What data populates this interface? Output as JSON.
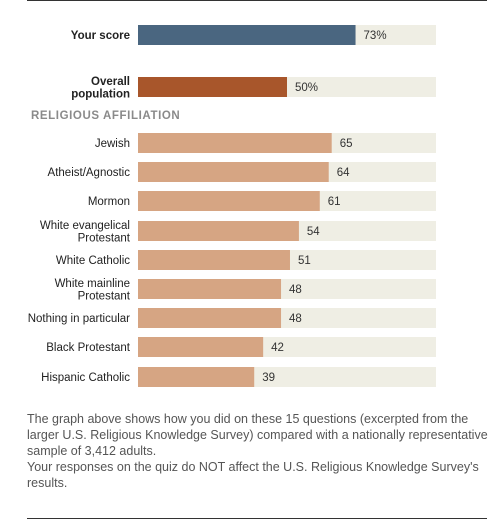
{
  "section_label": "RELIGIOUS AFFILIATION",
  "footer": {
    "paragraph1": "The graph above shows how you did on these 15 questions (excerpted from the larger U.S. Religious Knowledge Survey) compared with a nationally representative sample of 3,412 adults.",
    "paragraph2": "Your responses on the quiz do NOT affect the U.S. Religious Knowledge Survey's results."
  },
  "colors": {
    "your_score": "#4a6680",
    "overall": "#a8562b",
    "group": "#d6a583",
    "track": "#efeee4",
    "section_label": "#8a8a8a"
  },
  "chart_data": {
    "type": "bar",
    "orientation": "horizontal",
    "xlim": [
      0,
      100
    ],
    "grid": false,
    "summary": [
      {
        "label": [
          "Your score"
        ],
        "value": 73,
        "display": "73%",
        "color": "#4a6680"
      },
      {
        "label": [
          "Overall",
          "population"
        ],
        "value": 50,
        "display": "50%",
        "color": "#a8562b"
      }
    ],
    "groups": [
      {
        "label": [
          "Jewish"
        ],
        "value": 65
      },
      {
        "label": [
          "Atheist/Agnostic"
        ],
        "value": 64
      },
      {
        "label": [
          "Mormon"
        ],
        "value": 61
      },
      {
        "label": [
          "White evangelical",
          "Protestant"
        ],
        "value": 54
      },
      {
        "label": [
          "White Catholic"
        ],
        "value": 51
      },
      {
        "label": [
          "White mainline",
          "Protestant"
        ],
        "value": 48
      },
      {
        "label": [
          "Nothing in particular"
        ],
        "value": 48
      },
      {
        "label": [
          "Black Protestant"
        ],
        "value": 42
      },
      {
        "label": [
          "Hispanic Catholic"
        ],
        "value": 39
      }
    ]
  }
}
